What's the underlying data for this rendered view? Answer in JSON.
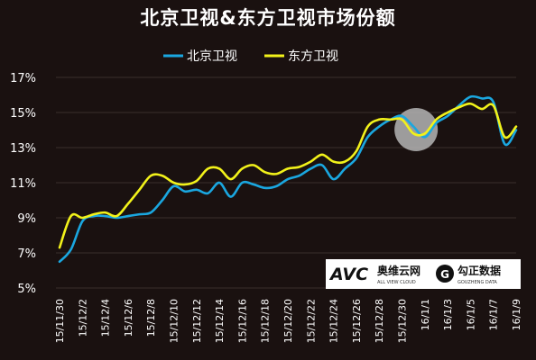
{
  "chart_data": {
    "type": "line",
    "title": "北京卫视&东方卫视市场份额",
    "x": [
      "15/11/30",
      "15/12/1",
      "15/12/2",
      "15/12/3",
      "15/12/4",
      "15/12/5",
      "15/12/6",
      "15/12/7",
      "15/12/8",
      "15/12/9",
      "15/12/10",
      "15/12/11",
      "15/12/12",
      "15/12/13",
      "15/12/14",
      "15/12/15",
      "15/12/16",
      "15/12/17",
      "15/12/18",
      "15/12/19",
      "15/12/20",
      "15/12/21",
      "15/12/22",
      "15/12/23",
      "15/12/24",
      "15/12/25",
      "15/12/26",
      "15/12/27",
      "15/12/28",
      "15/12/29",
      "15/12/30",
      "15/12/31",
      "16/1/1",
      "16/1/2",
      "16/1/3",
      "16/1/4",
      "16/1/5",
      "16/1/6",
      "16/1/7",
      "16/1/8",
      "16/1/9"
    ],
    "x_tick_labels": [
      "15/11/30",
      "15/12/2",
      "15/12/4",
      "15/12/6",
      "15/12/8",
      "15/12/10",
      "15/12/12",
      "15/12/14",
      "15/12/16",
      "15/12/18",
      "15/12/20",
      "15/12/22",
      "15/12/24",
      "15/12/26",
      "15/12/28",
      "15/12/30",
      "16/1/1",
      "16/1/3",
      "16/1/5",
      "16/1/7",
      "16/1/9"
    ],
    "y_tick_labels": [
      "5%",
      "7%",
      "9%",
      "11%",
      "13%",
      "15%",
      "17%"
    ],
    "ylim": [
      5,
      17
    ],
    "y_ticks": [
      5,
      7,
      9,
      11,
      13,
      15,
      17
    ],
    "legend_position": "top-center",
    "series": [
      {
        "name": "北京卫视",
        "color": "#1aa7e0",
        "values": [
          6.5,
          7.2,
          8.8,
          9.1,
          9.1,
          9.0,
          9.1,
          9.2,
          9.3,
          10.0,
          10.8,
          10.5,
          10.6,
          10.4,
          11.0,
          10.2,
          11.0,
          10.9,
          10.7,
          10.8,
          11.2,
          11.4,
          11.8,
          12.0,
          11.2,
          11.8,
          12.4,
          13.6,
          14.2,
          14.6,
          14.8,
          14.2,
          13.6,
          14.4,
          14.8,
          15.4,
          15.9,
          15.8,
          15.6,
          13.2,
          14.0
        ]
      },
      {
        "name": "东方卫视",
        "color": "#f2f21a",
        "values": [
          7.3,
          9.1,
          9.0,
          9.2,
          9.3,
          9.1,
          9.8,
          10.6,
          11.4,
          11.4,
          11.0,
          10.9,
          11.1,
          11.8,
          11.8,
          11.2,
          11.8,
          12.0,
          11.6,
          11.5,
          11.8,
          11.9,
          12.2,
          12.6,
          12.2,
          12.2,
          12.8,
          14.2,
          14.6,
          14.6,
          14.6,
          13.8,
          13.8,
          14.6,
          15.0,
          15.3,
          15.5,
          15.2,
          15.4,
          13.6,
          14.2
        ]
      }
    ],
    "highlight_index": 31
  },
  "watermark": {
    "avc_logo": "AVC",
    "avc_cn": "奥维云网",
    "avc_en": "ALL VIEW CLOUD",
    "gz_cn": "勾正数据",
    "gz_en": "GOUZHENG DATA"
  }
}
